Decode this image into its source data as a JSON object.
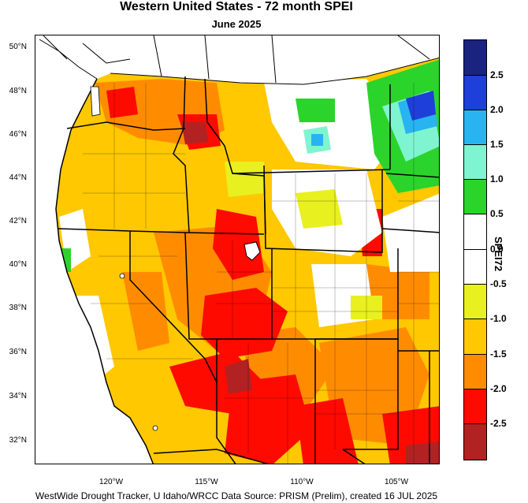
{
  "title": "Western United States - 72 month SPEI",
  "subtitle": "June 2025",
  "footer": "WestWide Drought Tracker, U Idaho/WRCC Data Source: PRISM (Prelim), created 16 JUL 2025",
  "latitude_labels": [
    "50°N",
    "48°N",
    "46°N",
    "44°N",
    "42°N",
    "40°N",
    "38°N",
    "36°N",
    "34°N",
    "32°N"
  ],
  "longitude_labels": [
    "120°W",
    "115°W",
    "110°W",
    "105°W"
  ],
  "colorbar": {
    "title": "SPEI72",
    "tick_labels": [
      "2.5",
      "2.0",
      "1.5",
      "1.0",
      "0.5",
      "0.0",
      "-0.5",
      "-1.0",
      "-1.5",
      "-2.0",
      "-2.5"
    ],
    "colors": [
      "#1a237e",
      "#1e3fd9",
      "#28b4f0",
      "#7ef5d0",
      "#2bd42b",
      "#ffffff",
      "#ffffff",
      "#e8f020",
      "#ffc800",
      "#ff8c00",
      "#ff0a00",
      "#b22222"
    ]
  },
  "map_colors": {
    "extreme": "#b22222",
    "severe": "#ff0a00",
    "moderate": "#ff8c00",
    "mild": "#ffc800",
    "slight": "#e8f020",
    "neutral": "#ffffff",
    "wet": "#2bd42b",
    "verywet": "#7ef5d0",
    "wetter": "#28b4f0",
    "wettest": "#1e3fd9"
  }
}
